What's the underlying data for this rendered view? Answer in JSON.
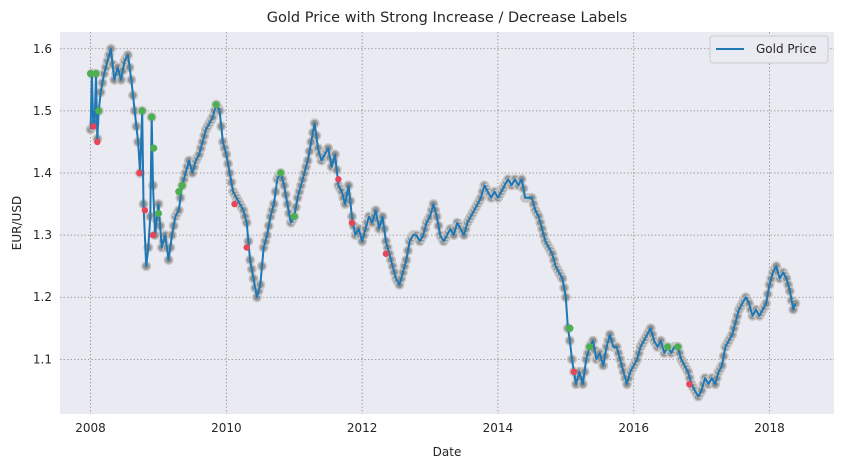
{
  "chart_data": {
    "type": "line",
    "title": "Gold Price with Strong Increase / Decrease Labels",
    "xlabel": "Date",
    "ylabel": "EUR/USD",
    "xlim": [
      2007.55,
      2018.95
    ],
    "ylim": [
      1.012,
      1.627
    ],
    "x_ticks": [
      2008,
      2010,
      2012,
      2014,
      2016,
      2018
    ],
    "x_tick_labels": [
      "2008",
      "2010",
      "2012",
      "2014",
      "2016",
      "2018"
    ],
    "y_ticks": [
      1.1,
      1.2,
      1.3,
      1.4,
      1.5,
      1.6
    ],
    "y_tick_labels": [
      "1.1",
      "1.2",
      "1.3",
      "1.4",
      "1.5",
      "1.6"
    ],
    "grid": true,
    "legend_position": "top-right",
    "series": [
      {
        "name": "Gold Price",
        "color": "#1f77b4",
        "points": [
          [
            2008.0,
            1.47
          ],
          [
            2008.02,
            1.56
          ],
          [
            2008.04,
            1.475
          ],
          [
            2008.06,
            1.48
          ],
          [
            2008.08,
            1.56
          ],
          [
            2008.1,
            1.455
          ],
          [
            2008.12,
            1.5
          ],
          [
            2008.15,
            1.53
          ],
          [
            2008.2,
            1.56
          ],
          [
            2008.25,
            1.58
          ],
          [
            2008.3,
            1.6
          ],
          [
            2008.35,
            1.55
          ],
          [
            2008.4,
            1.57
          ],
          [
            2008.45,
            1.55
          ],
          [
            2008.5,
            1.58
          ],
          [
            2008.55,
            1.59
          ],
          [
            2008.6,
            1.55
          ],
          [
            2008.65,
            1.5
          ],
          [
            2008.7,
            1.45
          ],
          [
            2008.73,
            1.4
          ],
          [
            2008.76,
            1.5
          ],
          [
            2008.78,
            1.35
          ],
          [
            2008.82,
            1.25
          ],
          [
            2008.85,
            1.28
          ],
          [
            2008.88,
            1.33
          ],
          [
            2008.9,
            1.49
          ],
          [
            2008.92,
            1.38
          ],
          [
            2008.95,
            1.3
          ],
          [
            2009.0,
            1.35
          ],
          [
            2009.05,
            1.28
          ],
          [
            2009.1,
            1.3
          ],
          [
            2009.15,
            1.26
          ],
          [
            2009.2,
            1.3
          ],
          [
            2009.25,
            1.33
          ],
          [
            2009.3,
            1.34
          ],
          [
            2009.35,
            1.38
          ],
          [
            2009.4,
            1.4
          ],
          [
            2009.45,
            1.42
          ],
          [
            2009.5,
            1.4
          ],
          [
            2009.55,
            1.42
          ],
          [
            2009.6,
            1.43
          ],
          [
            2009.65,
            1.45
          ],
          [
            2009.7,
            1.47
          ],
          [
            2009.75,
            1.48
          ],
          [
            2009.8,
            1.49
          ],
          [
            2009.85,
            1.51
          ],
          [
            2009.9,
            1.5
          ],
          [
            2009.95,
            1.45
          ],
          [
            2010.0,
            1.43
          ],
          [
            2010.05,
            1.4
          ],
          [
            2010.1,
            1.37
          ],
          [
            2010.15,
            1.36
          ],
          [
            2010.2,
            1.35
          ],
          [
            2010.25,
            1.34
          ],
          [
            2010.3,
            1.32
          ],
          [
            2010.35,
            1.26
          ],
          [
            2010.4,
            1.23
          ],
          [
            2010.45,
            1.2
          ],
          [
            2010.5,
            1.22
          ],
          [
            2010.55,
            1.28
          ],
          [
            2010.6,
            1.3
          ],
          [
            2010.65,
            1.33
          ],
          [
            2010.7,
            1.35
          ],
          [
            2010.75,
            1.39
          ],
          [
            2010.8,
            1.4
          ],
          [
            2010.85,
            1.38
          ],
          [
            2010.9,
            1.35
          ],
          [
            2010.95,
            1.32
          ],
          [
            2011.0,
            1.33
          ],
          [
            2011.05,
            1.36
          ],
          [
            2011.1,
            1.38
          ],
          [
            2011.15,
            1.4
          ],
          [
            2011.2,
            1.42
          ],
          [
            2011.25,
            1.45
          ],
          [
            2011.3,
            1.48
          ],
          [
            2011.35,
            1.44
          ],
          [
            2011.4,
            1.42
          ],
          [
            2011.45,
            1.43
          ],
          [
            2011.5,
            1.44
          ],
          [
            2011.55,
            1.41
          ],
          [
            2011.6,
            1.43
          ],
          [
            2011.65,
            1.38
          ],
          [
            2011.7,
            1.37
          ],
          [
            2011.75,
            1.35
          ],
          [
            2011.8,
            1.38
          ],
          [
            2011.85,
            1.33
          ],
          [
            2011.9,
            1.3
          ],
          [
            2011.95,
            1.31
          ],
          [
            2012.0,
            1.29
          ],
          [
            2012.05,
            1.31
          ],
          [
            2012.1,
            1.33
          ],
          [
            2012.15,
            1.32
          ],
          [
            2012.2,
            1.34
          ],
          [
            2012.25,
            1.31
          ],
          [
            2012.3,
            1.33
          ],
          [
            2012.35,
            1.29
          ],
          [
            2012.4,
            1.27
          ],
          [
            2012.45,
            1.25
          ],
          [
            2012.5,
            1.23
          ],
          [
            2012.55,
            1.22
          ],
          [
            2012.6,
            1.24
          ],
          [
            2012.65,
            1.26
          ],
          [
            2012.7,
            1.29
          ],
          [
            2012.75,
            1.3
          ],
          [
            2012.8,
            1.3
          ],
          [
            2012.85,
            1.29
          ],
          [
            2012.9,
            1.3
          ],
          [
            2012.95,
            1.32
          ],
          [
            2013.0,
            1.33
          ],
          [
            2013.05,
            1.35
          ],
          [
            2013.1,
            1.33
          ],
          [
            2013.15,
            1.3
          ],
          [
            2013.2,
            1.29
          ],
          [
            2013.25,
            1.3
          ],
          [
            2013.3,
            1.31
          ],
          [
            2013.35,
            1.3
          ],
          [
            2013.4,
            1.32
          ],
          [
            2013.45,
            1.31
          ],
          [
            2013.5,
            1.3
          ],
          [
            2013.55,
            1.32
          ],
          [
            2013.6,
            1.33
          ],
          [
            2013.65,
            1.34
          ],
          [
            2013.7,
            1.35
          ],
          [
            2013.75,
            1.36
          ],
          [
            2013.8,
            1.38
          ],
          [
            2013.85,
            1.37
          ],
          [
            2013.9,
            1.36
          ],
          [
            2013.95,
            1.37
          ],
          [
            2014.0,
            1.36
          ],
          [
            2014.05,
            1.37
          ],
          [
            2014.1,
            1.38
          ],
          [
            2014.15,
            1.39
          ],
          [
            2014.2,
            1.38
          ],
          [
            2014.25,
            1.39
          ],
          [
            2014.3,
            1.38
          ],
          [
            2014.35,
            1.39
          ],
          [
            2014.4,
            1.36
          ],
          [
            2014.45,
            1.36
          ],
          [
            2014.5,
            1.36
          ],
          [
            2014.55,
            1.34
          ],
          [
            2014.6,
            1.33
          ],
          [
            2014.65,
            1.31
          ],
          [
            2014.7,
            1.29
          ],
          [
            2014.75,
            1.28
          ],
          [
            2014.8,
            1.27
          ],
          [
            2014.85,
            1.25
          ],
          [
            2014.9,
            1.24
          ],
          [
            2014.95,
            1.23
          ],
          [
            2015.0,
            1.2
          ],
          [
            2015.03,
            1.15
          ],
          [
            2015.06,
            1.13
          ],
          [
            2015.09,
            1.1
          ],
          [
            2015.12,
            1.08
          ],
          [
            2015.15,
            1.06
          ],
          [
            2015.2,
            1.08
          ],
          [
            2015.25,
            1.06
          ],
          [
            2015.3,
            1.1
          ],
          [
            2015.35,
            1.12
          ],
          [
            2015.4,
            1.13
          ],
          [
            2015.45,
            1.1
          ],
          [
            2015.5,
            1.11
          ],
          [
            2015.55,
            1.09
          ],
          [
            2015.6,
            1.12
          ],
          [
            2015.65,
            1.14
          ],
          [
            2015.7,
            1.12
          ],
          [
            2015.75,
            1.12
          ],
          [
            2015.8,
            1.1
          ],
          [
            2015.85,
            1.08
          ],
          [
            2015.9,
            1.06
          ],
          [
            2015.95,
            1.08
          ],
          [
            2016.0,
            1.09
          ],
          [
            2016.05,
            1.1
          ],
          [
            2016.1,
            1.12
          ],
          [
            2016.15,
            1.13
          ],
          [
            2016.2,
            1.14
          ],
          [
            2016.25,
            1.15
          ],
          [
            2016.3,
            1.13
          ],
          [
            2016.35,
            1.12
          ],
          [
            2016.4,
            1.13
          ],
          [
            2016.45,
            1.11
          ],
          [
            2016.5,
            1.12
          ],
          [
            2016.55,
            1.11
          ],
          [
            2016.6,
            1.12
          ],
          [
            2016.65,
            1.12
          ],
          [
            2016.7,
            1.1
          ],
          [
            2016.75,
            1.09
          ],
          [
            2016.8,
            1.08
          ],
          [
            2016.85,
            1.06
          ],
          [
            2016.9,
            1.05
          ],
          [
            2016.95,
            1.04
          ],
          [
            2017.0,
            1.05
          ],
          [
            2017.05,
            1.07
          ],
          [
            2017.1,
            1.06
          ],
          [
            2017.15,
            1.07
          ],
          [
            2017.2,
            1.06
          ],
          [
            2017.25,
            1.08
          ],
          [
            2017.3,
            1.09
          ],
          [
            2017.35,
            1.12
          ],
          [
            2017.4,
            1.13
          ],
          [
            2017.45,
            1.14
          ],
          [
            2017.5,
            1.16
          ],
          [
            2017.55,
            1.18
          ],
          [
            2017.6,
            1.19
          ],
          [
            2017.65,
            1.2
          ],
          [
            2017.7,
            1.19
          ],
          [
            2017.75,
            1.17
          ],
          [
            2017.8,
            1.18
          ],
          [
            2017.85,
            1.17
          ],
          [
            2017.9,
            1.18
          ],
          [
            2017.95,
            1.19
          ],
          [
            2018.0,
            1.22
          ],
          [
            2018.05,
            1.24
          ],
          [
            2018.1,
            1.25
          ],
          [
            2018.15,
            1.23
          ],
          [
            2018.2,
            1.24
          ],
          [
            2018.25,
            1.23
          ],
          [
            2018.3,
            1.21
          ],
          [
            2018.35,
            1.18
          ],
          [
            2018.38,
            1.19
          ]
        ]
      }
    ],
    "markers": {
      "fill": "#939393",
      "halo": "#c4c4c4",
      "increase_color": "#4caf50",
      "decrease_color": "#e6455a"
    },
    "strong_increase_points": [
      [
        2008.0,
        1.56
      ],
      [
        2008.08,
        1.56
      ],
      [
        2008.12,
        1.5
      ],
      [
        2008.76,
        1.5
      ],
      [
        2008.9,
        1.49
      ],
      [
        2008.93,
        1.44
      ],
      [
        2009.0,
        1.335
      ],
      [
        2009.3,
        1.37
      ],
      [
        2009.35,
        1.38
      ],
      [
        2009.85,
        1.51
      ],
      [
        2010.8,
        1.4
      ],
      [
        2011.0,
        1.33
      ],
      [
        2015.06,
        1.15
      ],
      [
        2015.35,
        1.12
      ],
      [
        2016.65,
        1.12
      ],
      [
        2016.5,
        1.12
      ]
    ],
    "strong_decrease_points": [
      [
        2008.04,
        1.475
      ],
      [
        2008.1,
        1.45
      ],
      [
        2008.72,
        1.4
      ],
      [
        2008.8,
        1.34
      ],
      [
        2008.92,
        1.3
      ],
      [
        2010.12,
        1.35
      ],
      [
        2010.3,
        1.28
      ],
      [
        2011.65,
        1.39
      ],
      [
        2011.85,
        1.32
      ],
      [
        2012.35,
        1.27
      ],
      [
        2015.12,
        1.08
      ],
      [
        2016.82,
        1.06
      ]
    ]
  }
}
